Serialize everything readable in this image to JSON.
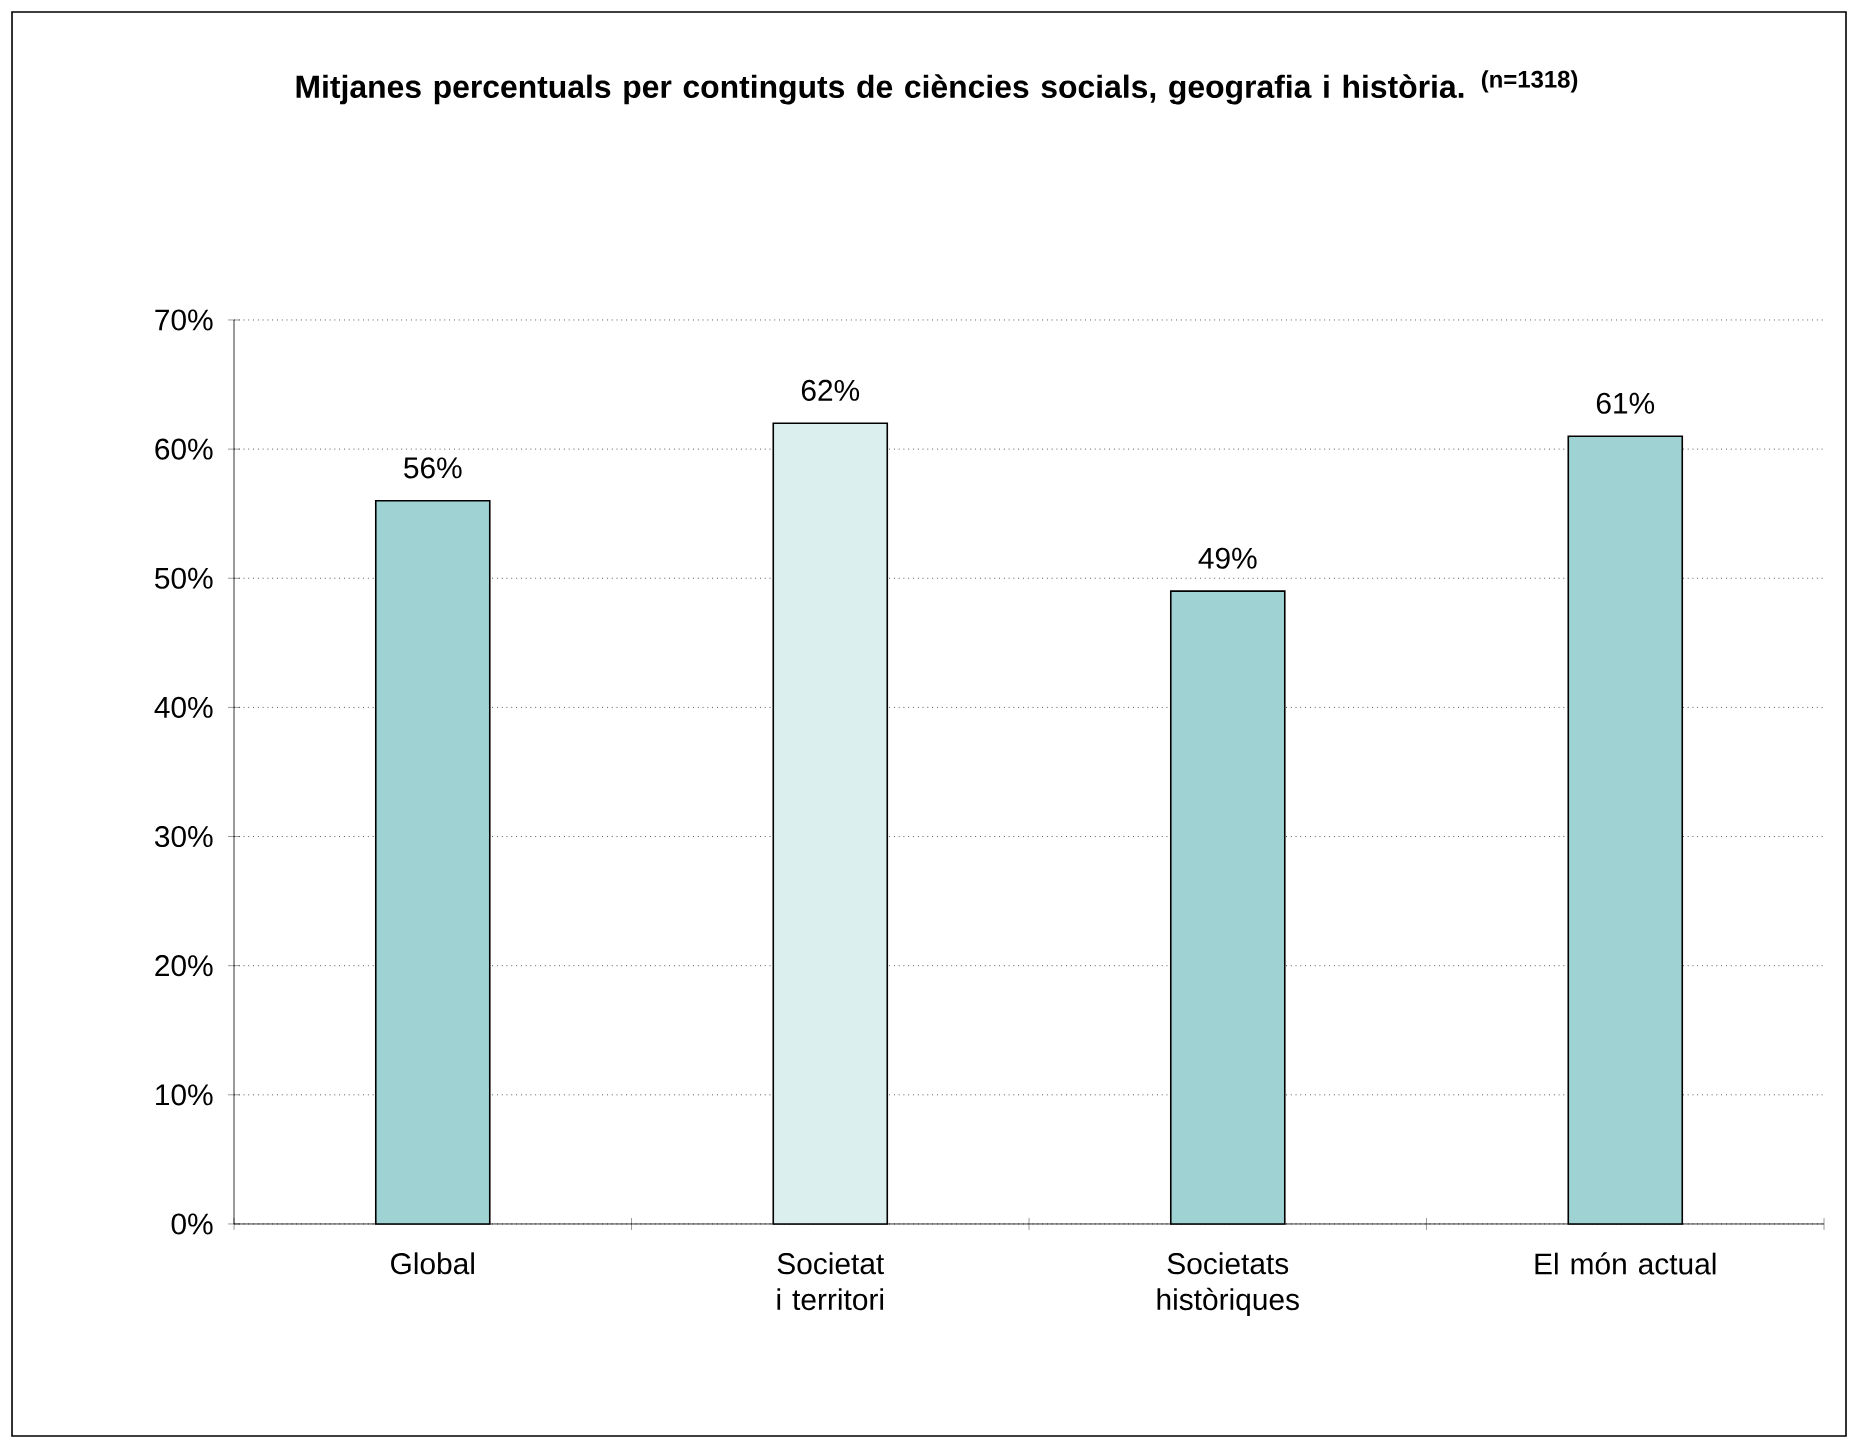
{
  "chart_data": {
    "type": "bar",
    "title": "Mitjanes percentuals per continguts de ciències socials, geografia i història.",
    "subtitle": "(n=1318)",
    "categories": [
      "Global",
      "Societat i territori",
      "Societats històriques",
      "El món actual"
    ],
    "values": [
      56,
      62,
      49,
      61
    ],
    "colors": [
      "#9fd2d2",
      "#dcefef",
      "#9fd2d2",
      "#9fd2d2"
    ],
    "value_labels": [
      "56%",
      "62%",
      "49%",
      "61%"
    ],
    "ylim": [
      0,
      70
    ],
    "yticks": [
      {
        "value": 0,
        "label": "0%"
      },
      {
        "value": 10,
        "label": "10%"
      },
      {
        "value": 20,
        "label": "20%"
      },
      {
        "value": 30,
        "label": "30%"
      },
      {
        "value": 40,
        "label": "40%"
      },
      {
        "value": 50,
        "label": "50%"
      },
      {
        "value": 60,
        "label": "60%"
      },
      {
        "value": 70,
        "label": "70%"
      }
    ],
    "grid": "y"
  }
}
